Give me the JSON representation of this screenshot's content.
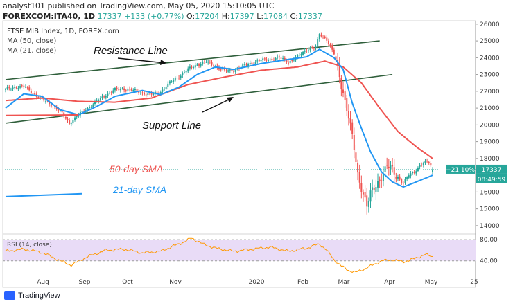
{
  "header": {
    "line1": "analyst101 published on TradingView.com, May 05, 2020 15:10:05 UTC",
    "symbol": "FOREXCOM:ITA40, 1D",
    "last": "17337",
    "change": "+133 (+0.77%)",
    "o_label": "O:",
    "o": "17204",
    "h_label": "H:",
    "h": "17397",
    "l_label": "L:",
    "l": "17084",
    "c_label": "C:",
    "c": "17337"
  },
  "legend": {
    "title": "FTSE MIB Index, 1D, FOREX.com",
    "ma50": "MA (50, close)",
    "ma21": "MA (21, close)"
  },
  "annotations": {
    "resistance": "Resistance Line",
    "support": "Support Line",
    "sma50": "50-day SMA",
    "sma21": "21-day SMA"
  },
  "price_badge": {
    "pct": "−21.10%",
    "price": "17337",
    "countdown": "08:49:59"
  },
  "rsi": {
    "label": "RSI (14, close)",
    "upper": 80,
    "lower": 40,
    "upper_label": "80.00",
    "lower_label": "40.00"
  },
  "footer": {
    "brand": "TradingView"
  },
  "colors": {
    "up": "#26a69a",
    "down": "#ef5350",
    "ma50": "#ef5350",
    "ma21": "#2196f3",
    "trend": "#2e5e3a",
    "rsi": "#ff9800",
    "rsi_band": "#e9dcf7"
  },
  "chart_data": {
    "type": "candlestick",
    "y_ticks": [
      14000,
      15000,
      16000,
      17000,
      18000,
      19000,
      20000,
      21000,
      22000,
      23000,
      24000,
      25000,
      26000
    ],
    "ylim": [
      13500,
      26200
    ],
    "x_ticks": [
      "Aug",
      "Sep",
      "Oct",
      "Nov",
      "2020",
      "Feb",
      "Mar",
      "Apr",
      "May",
      "25"
    ],
    "close_anchors": [
      [
        0,
        22100
      ],
      [
        5,
        22250
      ],
      [
        10,
        22300
      ],
      [
        15,
        21900
      ],
      [
        20,
        21500
      ],
      [
        25,
        21200
      ],
      [
        30,
        20800
      ],
      [
        35,
        20100
      ],
      [
        40,
        20600
      ],
      [
        45,
        21000
      ],
      [
        50,
        21400
      ],
      [
        55,
        21800
      ],
      [
        60,
        22100
      ],
      [
        65,
        22150
      ],
      [
        70,
        22050
      ],
      [
        75,
        21900
      ],
      [
        80,
        21800
      ],
      [
        85,
        22000
      ],
      [
        90,
        22500
      ],
      [
        95,
        22900
      ],
      [
        100,
        23300
      ],
      [
        105,
        23600
      ],
      [
        110,
        23750
      ],
      [
        115,
        23500
      ],
      [
        120,
        23200
      ],
      [
        125,
        23250
      ],
      [
        130,
        23500
      ],
      [
        135,
        23700
      ],
      [
        140,
        23850
      ],
      [
        145,
        23900
      ],
      [
        150,
        24000
      ],
      [
        155,
        23750
      ],
      [
        160,
        24050
      ],
      [
        165,
        24500
      ],
      [
        170,
        24600
      ],
      [
        172,
        25400
      ],
      [
        176,
        25100
      ],
      [
        180,
        24200
      ],
      [
        185,
        22000
      ],
      [
        188,
        20500
      ],
      [
        191,
        18500
      ],
      [
        193,
        17000
      ],
      [
        196,
        16000
      ],
      [
        198,
        15200
      ],
      [
        200,
        15800
      ],
      [
        203,
        16400
      ],
      [
        206,
        17000
      ],
      [
        209,
        17500
      ],
      [
        212,
        17300
      ],
      [
        215,
        16900
      ],
      [
        218,
        16500
      ],
      [
        221,
        17000
      ],
      [
        224,
        17200
      ],
      [
        227,
        17600
      ],
      [
        230,
        17750
      ],
      [
        232,
        17800
      ],
      [
        234,
        17337
      ]
    ],
    "ma50_anchors": [
      [
        0,
        21450
      ],
      [
        20,
        21600
      ],
      [
        40,
        21400
      ],
      [
        60,
        21350
      ],
      [
        80,
        21600
      ],
      [
        100,
        22400
      ],
      [
        120,
        22850
      ],
      [
        140,
        23250
      ],
      [
        160,
        23450
      ],
      [
        175,
        23800
      ],
      [
        185,
        23450
      ],
      [
        195,
        22500
      ],
      [
        205,
        21000
      ],
      [
        215,
        19600
      ],
      [
        225,
        18700
      ],
      [
        234,
        18000
      ]
    ],
    "ma21_anchors": [
      [
        0,
        21000
      ],
      [
        10,
        21850
      ],
      [
        20,
        21700
      ],
      [
        30,
        20900
      ],
      [
        40,
        20600
      ],
      [
        50,
        21100
      ],
      [
        60,
        21700
      ],
      [
        75,
        22050
      ],
      [
        85,
        21800
      ],
      [
        95,
        22250
      ],
      [
        105,
        23000
      ],
      [
        115,
        23450
      ],
      [
        125,
        23300
      ],
      [
        140,
        23650
      ],
      [
        155,
        23900
      ],
      [
        165,
        24050
      ],
      [
        172,
        24500
      ],
      [
        180,
        24000
      ],
      [
        185,
        23300
      ],
      [
        190,
        21300
      ],
      [
        195,
        19800
      ],
      [
        200,
        18400
      ],
      [
        206,
        17200
      ],
      [
        212,
        16600
      ],
      [
        218,
        16300
      ],
      [
        225,
        16600
      ],
      [
        234,
        17000
      ]
    ],
    "rsi_anchors": [
      [
        0,
        58
      ],
      [
        10,
        62
      ],
      [
        20,
        56
      ],
      [
        30,
        40
      ],
      [
        36,
        32
      ],
      [
        45,
        48
      ],
      [
        55,
        60
      ],
      [
        65,
        62
      ],
      [
        75,
        55
      ],
      [
        85,
        58
      ],
      [
        92,
        68
      ],
      [
        98,
        76
      ],
      [
        102,
        83
      ],
      [
        108,
        72
      ],
      [
        115,
        64
      ],
      [
        125,
        58
      ],
      [
        135,
        62
      ],
      [
        145,
        66
      ],
      [
        155,
        58
      ],
      [
        165,
        64
      ],
      [
        172,
        72
      ],
      [
        176,
        60
      ],
      [
        180,
        42
      ],
      [
        184,
        30
      ],
      [
        188,
        22
      ],
      [
        192,
        18
      ],
      [
        196,
        24
      ],
      [
        200,
        30
      ],
      [
        206,
        40
      ],
      [
        212,
        42
      ],
      [
        218,
        38
      ],
      [
        224,
        44
      ],
      [
        230,
        52
      ],
      [
        234,
        48
      ]
    ],
    "current_price": 17337,
    "resistance_line": {
      "from": [
        0,
        22700
      ],
      "to": [
        205,
        25000
      ]
    },
    "support_line": {
      "from": [
        0,
        20100
      ],
      "to": [
        212,
        23000
      ]
    },
    "sma50_ray": {
      "from": [
        0,
        20560
      ],
      "to": [
        40,
        20590
      ]
    },
    "sma21_ray": {
      "from": [
        0,
        15730
      ],
      "to": [
        42,
        15900
      ]
    }
  }
}
